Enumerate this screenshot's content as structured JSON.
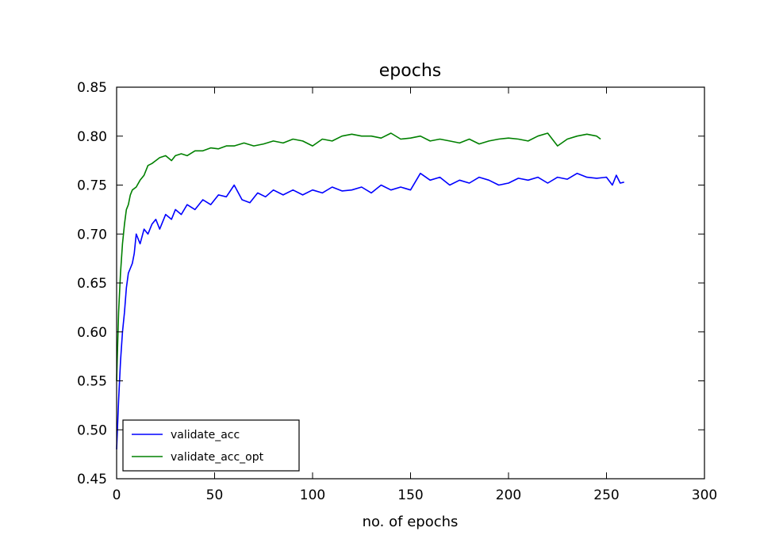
{
  "chart_data": {
    "type": "line",
    "title": "epochs",
    "xlabel": "no. of epochs",
    "ylabel": "",
    "xlim": [
      0,
      300
    ],
    "ylim": [
      0.45,
      0.85
    ],
    "xticks": [
      0,
      50,
      100,
      150,
      200,
      250,
      300
    ],
    "xtick_labels": [
      "0",
      "50",
      "100",
      "150",
      "200",
      "250",
      "300"
    ],
    "yticks": [
      0.45,
      0.5,
      0.55,
      0.6,
      0.65,
      0.7,
      0.75,
      0.8,
      0.85
    ],
    "ytick_labels": [
      "0.45",
      "0.50",
      "0.55",
      "0.60",
      "0.65",
      "0.70",
      "0.75",
      "0.80",
      "0.85"
    ],
    "grid": false,
    "legend": {
      "position": "lower-left"
    },
    "series": [
      {
        "name": "validate_acc",
        "color": "#0000ff",
        "x": [
          0,
          1,
          2,
          3,
          4,
          5,
          6,
          7,
          8,
          9,
          10,
          12,
          14,
          16,
          18,
          20,
          22,
          25,
          28,
          30,
          33,
          36,
          40,
          44,
          48,
          52,
          56,
          60,
          64,
          68,
          72,
          76,
          80,
          85,
          90,
          95,
          100,
          105,
          110,
          115,
          120,
          125,
          130,
          135,
          140,
          145,
          150,
          155,
          160,
          165,
          170,
          175,
          180,
          185,
          190,
          195,
          200,
          205,
          210,
          215,
          220,
          225,
          230,
          235,
          240,
          245,
          250,
          253,
          255,
          257,
          259
        ],
        "y": [
          0.48,
          0.53,
          0.57,
          0.6,
          0.62,
          0.645,
          0.66,
          0.665,
          0.67,
          0.68,
          0.7,
          0.69,
          0.705,
          0.7,
          0.71,
          0.715,
          0.705,
          0.72,
          0.715,
          0.725,
          0.72,
          0.73,
          0.725,
          0.735,
          0.73,
          0.74,
          0.738,
          0.75,
          0.735,
          0.732,
          0.742,
          0.738,
          0.745,
          0.74,
          0.745,
          0.74,
          0.745,
          0.742,
          0.748,
          0.744,
          0.745,
          0.748,
          0.742,
          0.75,
          0.745,
          0.748,
          0.745,
          0.762,
          0.755,
          0.758,
          0.75,
          0.755,
          0.752,
          0.758,
          0.755,
          0.75,
          0.752,
          0.757,
          0.755,
          0.758,
          0.752,
          0.758,
          0.756,
          0.762,
          0.758,
          0.757,
          0.758,
          0.75,
          0.76,
          0.752,
          0.753
        ]
      },
      {
        "name": "validate_acc_opt",
        "color": "#008000",
        "x": [
          0,
          1,
          2,
          3,
          4,
          5,
          6,
          7,
          8,
          10,
          12,
          14,
          16,
          18,
          20,
          22,
          25,
          28,
          30,
          33,
          36,
          40,
          44,
          48,
          52,
          56,
          60,
          65,
          70,
          75,
          80,
          85,
          90,
          95,
          100,
          105,
          110,
          115,
          120,
          125,
          130,
          135,
          140,
          145,
          150,
          155,
          160,
          165,
          170,
          175,
          180,
          185,
          190,
          195,
          200,
          205,
          210,
          215,
          220,
          225,
          230,
          235,
          240,
          245,
          247
        ],
        "y": [
          0.55,
          0.62,
          0.66,
          0.69,
          0.71,
          0.725,
          0.73,
          0.74,
          0.745,
          0.748,
          0.755,
          0.76,
          0.77,
          0.772,
          0.775,
          0.778,
          0.78,
          0.775,
          0.78,
          0.782,
          0.78,
          0.785,
          0.785,
          0.788,
          0.787,
          0.79,
          0.79,
          0.793,
          0.79,
          0.792,
          0.795,
          0.793,
          0.797,
          0.795,
          0.79,
          0.797,
          0.795,
          0.8,
          0.802,
          0.8,
          0.8,
          0.798,
          0.803,
          0.797,
          0.798,
          0.8,
          0.795,
          0.797,
          0.795,
          0.793,
          0.797,
          0.792,
          0.795,
          0.797,
          0.798,
          0.797,
          0.795,
          0.8,
          0.803,
          0.79,
          0.797,
          0.8,
          0.802,
          0.8,
          0.797
        ]
      }
    ]
  }
}
